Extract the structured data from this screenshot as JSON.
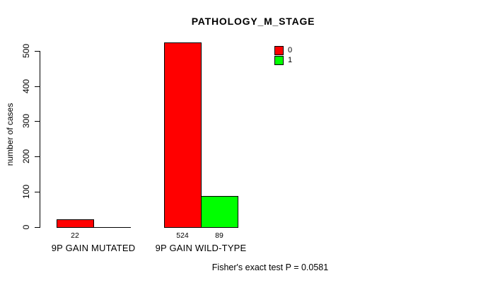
{
  "title": "PATHOLOGY_M_STAGE",
  "footer": "Fisher's exact test P = 0.0581",
  "colors": {
    "series0": "#ff0000",
    "series1": "#00ff00",
    "axis": "#000000",
    "background": "#ffffff"
  },
  "legend": {
    "items": [
      {
        "label": "0",
        "color": "#ff0000"
      },
      {
        "label": "1",
        "color": "#00ff00"
      }
    ]
  },
  "chart_data": {
    "type": "bar",
    "title": "PATHOLOGY_M_STAGE",
    "categories": [
      "9P GAIN MUTATED",
      "9P GAIN WILD-TYPE"
    ],
    "series": [
      {
        "name": "0",
        "color": "#ff0000",
        "values": [
          22,
          524
        ]
      },
      {
        "name": "1",
        "color": "#00ff00",
        "values": [
          0,
          89
        ]
      }
    ],
    "bar_value_labels": [
      "22",
      "524",
      "89"
    ],
    "xlabel": "",
    "ylabel": "number of cases",
    "ylim": [
      0,
      500
    ],
    "yticks": [
      0,
      100,
      200,
      300,
      400,
      500
    ],
    "grid": false,
    "legend_position": "top-right",
    "annotation": "Fisher's exact test P = 0.0581",
    "hide_zero_value_labels": true
  }
}
